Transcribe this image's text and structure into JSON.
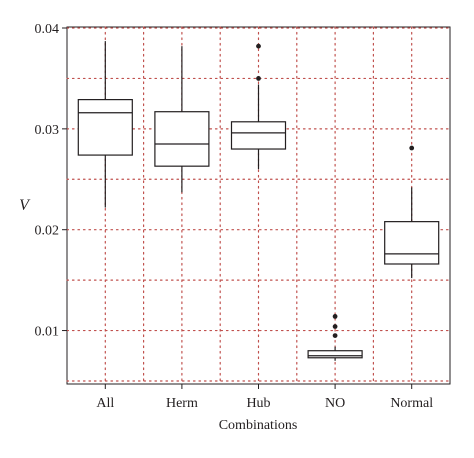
{
  "chart_data": {
    "type": "box",
    "title": "",
    "xlabel": "Combinations",
    "ylabel": "V",
    "ylim": [
      0.0047,
      0.0401
    ],
    "yticks": [
      0.01,
      0.02,
      0.03,
      0.04
    ],
    "ytick_labels": [
      "0.01",
      "0.02",
      "0.03",
      "0.04"
    ],
    "grid": true,
    "grid_style": "dotted",
    "colors": {
      "grid": "#c0504d",
      "box": "#231f20",
      "background": "#ffffff"
    },
    "categories": [
      "All",
      "Herm",
      "Hub",
      "NO",
      "Normal"
    ],
    "boxes": [
      {
        "category": "All",
        "whisker_low": 0.0222,
        "q1": 0.0274,
        "median": 0.0316,
        "q3": 0.0329,
        "whisker_high": 0.0387,
        "outliers": []
      },
      {
        "category": "Herm",
        "whisker_low": 0.0237,
        "q1": 0.0263,
        "median": 0.0285,
        "q3": 0.0317,
        "whisker_high": 0.0382,
        "outliers": []
      },
      {
        "category": "Hub",
        "whisker_low": 0.026,
        "q1": 0.028,
        "median": 0.0296,
        "q3": 0.0307,
        "whisker_high": 0.0344,
        "outliers": [
          0.035,
          0.0382
        ]
      },
      {
        "category": "NO",
        "whisker_low": 0.007,
        "q1": 0.0073,
        "median": 0.0075,
        "q3": 0.008,
        "whisker_high": 0.0084,
        "outliers": [
          0.0095,
          0.0104,
          0.0114
        ]
      },
      {
        "category": "Normal",
        "whisker_low": 0.0152,
        "q1": 0.0166,
        "median": 0.0176,
        "q3": 0.0208,
        "whisker_high": 0.0242,
        "outliers": [
          0.0281
        ]
      }
    ]
  }
}
